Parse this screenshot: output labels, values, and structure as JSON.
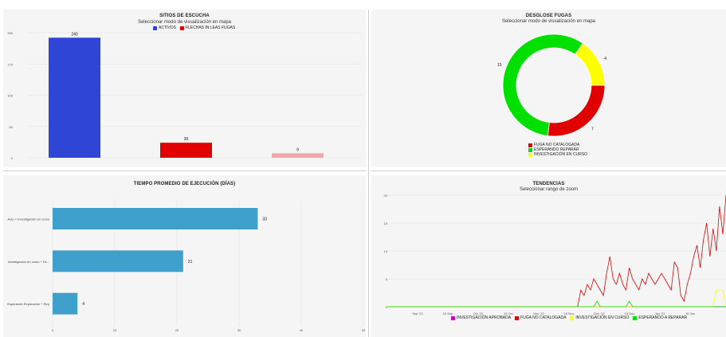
{
  "colors": {
    "blue": "#2f45d6",
    "red": "#e00000",
    "pink": "#f4a6a6",
    "green": "#00e000",
    "yellow": "#ffff00",
    "purple": "#cc00cc",
    "teal": "#3fa0cc",
    "grid": "#e2e2e2"
  },
  "panels": {
    "sites": {
      "title": "SITIOS DE ESCUCHA",
      "subtitle": "Seleccionar modo de visualización en mapa",
      "legend": [
        "ACTIVOS",
        "FLECHAS IN LEAS FUGAS"
      ]
    },
    "leaks": {
      "title": "DESGLOSE FUGAS",
      "subtitle": "Seleccionar modo de visualización en mapa",
      "legend": [
        "FUGA NO CATALOGADA",
        "ESPERANDO REPARAR",
        "INVESTIGACIÓN EN CURSO"
      ]
    },
    "exec_time": {
      "title": "TIEMPO PROMEDIO DE EJECUCIÓN (DÍAS)"
    },
    "trends": {
      "title": "TENDENCIAS",
      "subtitle": "Seleccionar rango de zoom",
      "legend": [
        "INVESTIGACIÓN APROBADA",
        "FUGA NO CATALOGADA",
        "INVESTIGACIÓN EN CURSO",
        "ESPERANDO A REPARAR"
      ]
    }
  },
  "chart_data": [
    {
      "type": "bar",
      "title": "SITIOS DE ESCUCHA",
      "categories": [
        "ACTIVOS",
        "FLECHAS IN LEAS FUGAS",
        ""
      ],
      "values": [
        240,
        30,
        9
      ],
      "yticks": [
        "250",
        "175",
        "100",
        "50",
        "0"
      ],
      "ylim": [
        0,
        250
      ],
      "legend": "top"
    },
    {
      "type": "pie",
      "title": "DESGLOSE FUGAS",
      "labels": [
        "FUGA NO CATALOGADA",
        "ESPERANDO REPARAR",
        "INVESTIGACIÓN EN CURSO"
      ],
      "values": [
        7,
        15,
        4
      ],
      "legend": "bottom"
    },
    {
      "type": "bar",
      "orientation": "horizontal",
      "title": "TIEMPO PROMEDIO DE EJECUCIÓN (DÍAS)",
      "categories": [
        "Auto + Investigación en curso",
        "Investigación en curso + Es...",
        "Esperando Reparación + Rep"
      ],
      "values": [
        33,
        21,
        4
      ],
      "xticks": [
        "0",
        "10",
        "20",
        "30",
        "40",
        "50"
      ],
      "xlim": [
        0,
        50
      ]
    },
    {
      "type": "line",
      "title": "TENDENCIAS",
      "xticks": [
        "Sep '22",
        "15 Sep",
        "Oct '22",
        "15 Oct",
        "Nov '22",
        "15 Nov",
        "Dec '22",
        "15 Dec",
        "Jan '23",
        "15 Jan"
      ],
      "yticks": [
        "20",
        "15",
        "10",
        "5",
        "0"
      ],
      "ylim": [
        0,
        20
      ],
      "legend": "bottom",
      "series": [
        {
          "name": "INVESTIGACIÓN APROBADA",
          "values": [
            0,
            0,
            0,
            0,
            0,
            0,
            0,
            0,
            0,
            0,
            0,
            0,
            0,
            0,
            0,
            0,
            0,
            0,
            0,
            0,
            0,
            0,
            0,
            0,
            0,
            0,
            0,
            0,
            0,
            0,
            0,
            0,
            0,
            0,
            0,
            0,
            0,
            0,
            0,
            0,
            0,
            0,
            0,
            0,
            0,
            0,
            0,
            0,
            0,
            0,
            0,
            0,
            0,
            0,
            0,
            0,
            0,
            0,
            0,
            0,
            0,
            0,
            0,
            0,
            0,
            0,
            0,
            0,
            0,
            0,
            0,
            0,
            0,
            0,
            0,
            0,
            0,
            0,
            0,
            0,
            0,
            0,
            0,
            0,
            0,
            0,
            0,
            0,
            0,
            0,
            0,
            0,
            0,
            0,
            0,
            0,
            0,
            0,
            0,
            0
          ]
        },
        {
          "name": "FUGA NO CATALOGADA",
          "values": [
            0,
            0,
            0,
            0,
            0,
            0,
            0,
            0,
            0,
            0,
            0,
            0,
            0,
            0,
            0,
            0,
            0,
            0,
            0,
            0,
            0,
            0,
            0,
            0,
            0,
            0,
            0,
            0,
            0,
            0,
            0,
            0,
            0,
            0,
            0,
            0,
            0,
            0,
            0,
            0,
            0,
            0,
            0,
            0,
            0,
            0,
            0,
            0,
            0,
            0,
            0,
            0,
            0,
            0,
            0,
            0,
            0,
            0,
            0,
            0,
            3,
            2,
            4,
            3,
            5,
            4,
            3,
            2,
            6,
            9,
            5,
            4,
            6,
            4,
            3,
            7,
            5,
            4,
            3,
            5,
            4,
            6,
            5,
            4,
            5,
            6,
            5,
            4,
            3,
            8,
            7,
            2,
            1,
            4,
            6,
            9,
            11,
            7,
            12,
            15,
            9,
            14,
            10,
            18,
            13,
            20
          ]
        },
        {
          "name": "INVESTIGACIÓN EN CURSO",
          "values": [
            0,
            0,
            0,
            0,
            0,
            0,
            0,
            0,
            0,
            0,
            0,
            0,
            0,
            0,
            0,
            0,
            0,
            0,
            0,
            0,
            0,
            0,
            0,
            0,
            0,
            0,
            0,
            0,
            0,
            0,
            0,
            0,
            0,
            0,
            0,
            0,
            0,
            0,
            0,
            0,
            0,
            0,
            0,
            0,
            0,
            0,
            0,
            0,
            0,
            0,
            0,
            0,
            0,
            0,
            0,
            0,
            0,
            0,
            0,
            0,
            0,
            0,
            0,
            0,
            0,
            0,
            0,
            0,
            0,
            0,
            0,
            0,
            0,
            0,
            0,
            0,
            0,
            0,
            0,
            0,
            0,
            0,
            0,
            0,
            0,
            0,
            0,
            0,
            0,
            0,
            0,
            0,
            0,
            0,
            0,
            0,
            0,
            0,
            0,
            0,
            0,
            0,
            3,
            3,
            3,
            0
          ]
        },
        {
          "name": "ESPERANDO A REPARAR",
          "values": [
            0,
            0,
            0,
            0,
            0,
            0,
            0,
            0,
            0,
            0,
            0,
            0,
            0,
            0,
            0,
            0,
            0,
            0,
            0,
            0,
            0,
            0,
            0,
            0,
            0,
            0,
            0,
            0,
            0,
            0,
            0,
            0,
            0,
            0,
            0,
            0,
            0,
            0,
            0,
            0,
            0,
            0,
            0,
            0,
            0,
            0,
            0,
            0,
            0,
            0,
            0,
            0,
            0,
            0,
            0,
            0,
            0,
            0,
            0,
            0,
            0,
            0,
            0,
            0,
            0,
            1,
            0,
            0,
            0,
            0,
            0,
            0,
            0,
            0,
            0,
            1,
            0,
            0,
            0,
            0,
            0,
            0,
            0,
            0,
            0,
            0,
            0,
            0,
            0,
            0,
            0,
            0,
            0,
            0,
            0,
            0,
            0,
            0,
            0,
            0,
            0,
            0,
            0,
            0,
            0,
            0
          ]
        }
      ]
    }
  ]
}
